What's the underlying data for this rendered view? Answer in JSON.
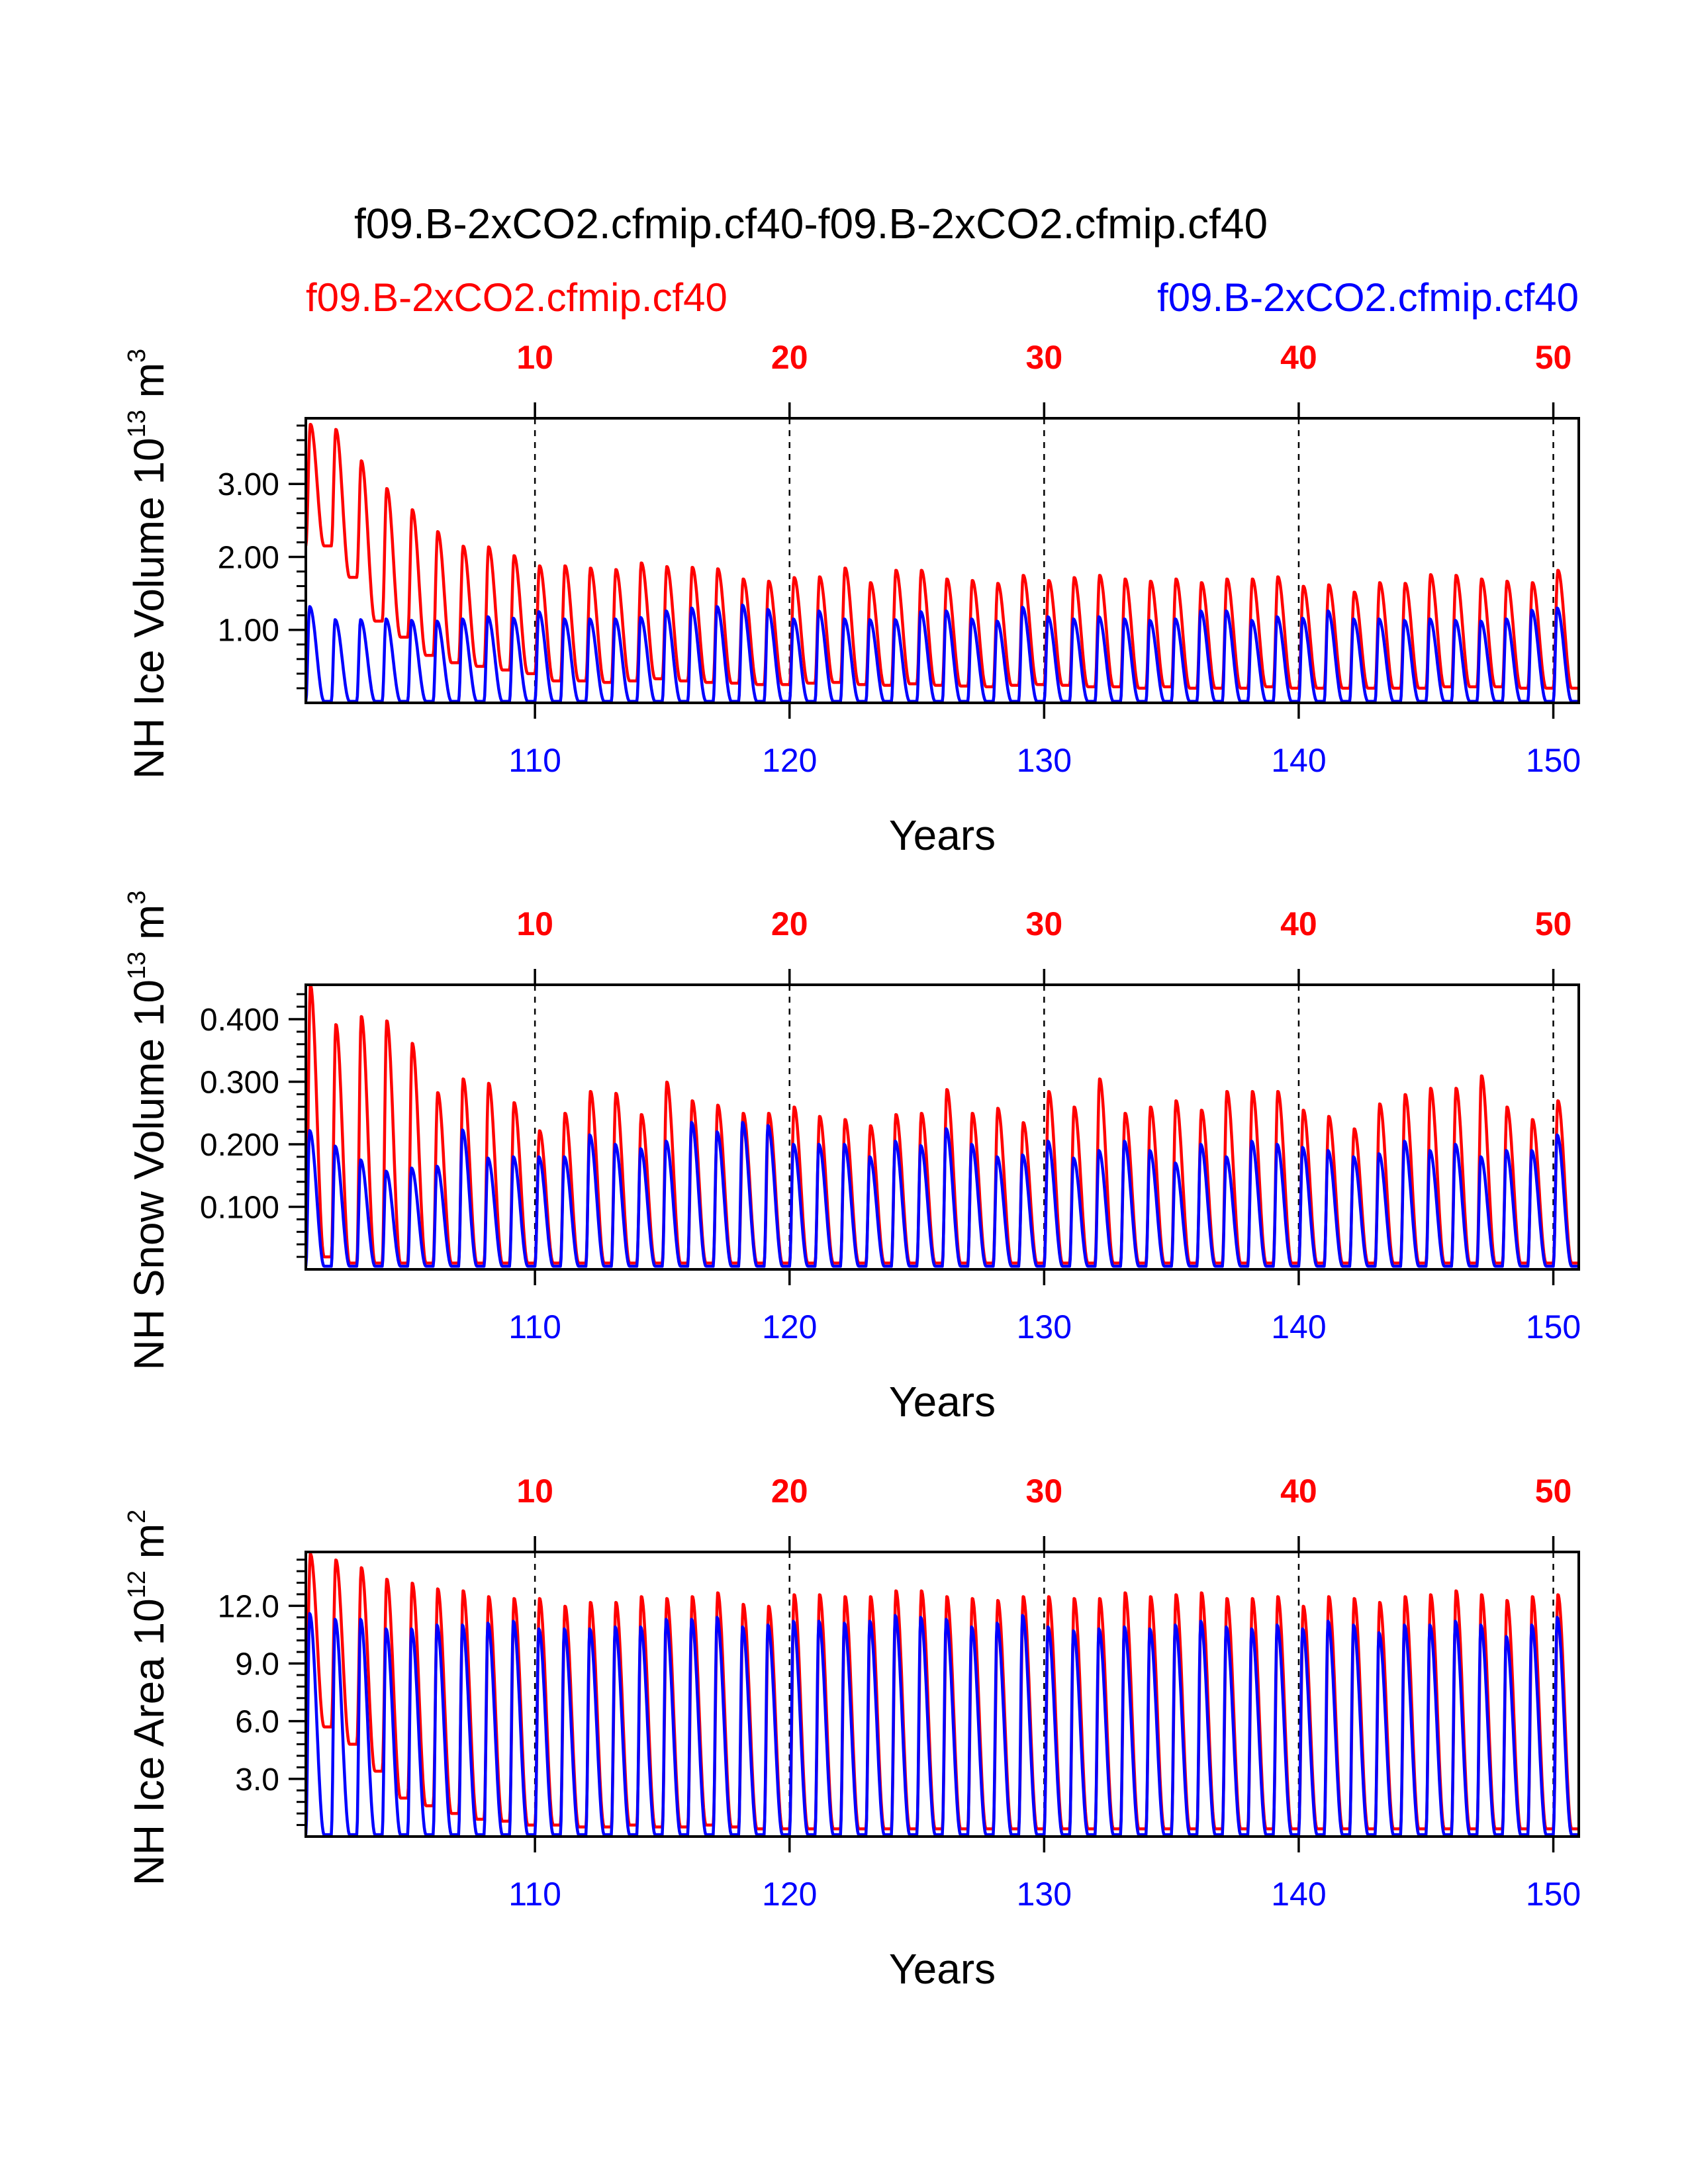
{
  "figure": {
    "title": "f09.B-2xCO2.cfmip.cf40-f09.B-2xCO2.cfmip.cf40",
    "left_label": "f09.B-2xCO2.cfmip.cf40",
    "right_label": "f09.B-2xCO2.cfmip.cf40"
  },
  "colors": {
    "red": "#ff0000",
    "blue": "#0000ff",
    "axis": "#000000"
  },
  "chart_data": [
    {
      "type": "line",
      "ylabel": "NH Ice Volume 10",
      "ylabel_exp": "13",
      "ylabel_unit": "m",
      "ylabel_unit_exp": "3",
      "xlabel": "Years",
      "xlim": [
        101,
        151
      ],
      "ylim": [
        0,
        3.9
      ],
      "yticks": [
        1.0,
        2.0,
        3.0
      ],
      "ytick_labels": [
        "1.00",
        "2.00",
        "3.00"
      ],
      "bottom_ticks": [
        110,
        120,
        130,
        140,
        150
      ],
      "bottom_tick_labels": [
        "110",
        "120",
        "130",
        "140",
        "150"
      ],
      "top_ticks": [
        110,
        120,
        130,
        140,
        150
      ],
      "top_tick_labels": [
        "10",
        "20",
        "30",
        "40",
        "50"
      ],
      "series": [
        {
          "color": "red",
          "max": [
            3.82,
            3.75,
            3.32,
            2.94,
            2.65,
            2.35,
            2.15,
            2.14,
            2.02,
            1.88,
            1.88,
            1.85,
            1.83,
            1.92,
            1.87,
            1.86,
            1.84,
            1.7,
            1.67,
            1.72,
            1.73,
            1.85,
            1.65,
            1.82,
            1.82,
            1.7,
            1.68,
            1.64,
            1.75,
            1.68,
            1.72,
            1.75,
            1.7,
            1.67,
            1.7,
            1.65,
            1.7,
            1.7,
            1.73,
            1.6,
            1.62,
            1.52,
            1.65,
            1.64,
            1.76,
            1.75,
            1.7,
            1.67,
            1.65,
            1.82
          ],
          "min": [
            2.15,
            1.72,
            1.12,
            0.9,
            0.65,
            0.55,
            0.5,
            0.45,
            0.4,
            0.3,
            0.3,
            0.28,
            0.3,
            0.33,
            0.3,
            0.28,
            0.27,
            0.25,
            0.25,
            0.27,
            0.28,
            0.25,
            0.24,
            0.26,
            0.24,
            0.23,
            0.22,
            0.24,
            0.25,
            0.24,
            0.22,
            0.22,
            0.2,
            0.22,
            0.2,
            0.2,
            0.2,
            0.22,
            0.2,
            0.2,
            0.2,
            0.2,
            0.2,
            0.2,
            0.22,
            0.22,
            0.22,
            0.2,
            0.2,
            0.2
          ]
        },
        {
          "color": "blue",
          "max": [
            1.32,
            1.14,
            1.14,
            1.15,
            1.13,
            1.12,
            1.15,
            1.18,
            1.16,
            1.25,
            1.15,
            1.15,
            1.15,
            1.17,
            1.26,
            1.3,
            1.32,
            1.34,
            1.28,
            1.15,
            1.26,
            1.15,
            1.14,
            1.14,
            1.25,
            1.26,
            1.15,
            1.12,
            1.31,
            1.18,
            1.15,
            1.18,
            1.15,
            1.13,
            1.15,
            1.26,
            1.26,
            1.13,
            1.18,
            1.16,
            1.26,
            1.15,
            1.15,
            1.13,
            1.15,
            1.13,
            1.12,
            1.15,
            1.27,
            1.3
          ],
          "min": [
            0.02,
            0.02,
            0.02,
            0.02,
            0.02,
            0.02,
            0.02,
            0.02,
            0.02,
            0.02,
            0.02,
            0.02,
            0.02,
            0.02,
            0.02,
            0.02,
            0.02,
            0.02,
            0.02,
            0.02,
            0.02,
            0.02,
            0.02,
            0.02,
            0.02,
            0.02,
            0.02,
            0.02,
            0.02,
            0.02,
            0.02,
            0.02,
            0.02,
            0.02,
            0.02,
            0.02,
            0.02,
            0.02,
            0.02,
            0.02,
            0.02,
            0.02,
            0.02,
            0.02,
            0.02,
            0.02,
            0.02,
            0.02,
            0.02,
            0.02
          ]
        }
      ]
    },
    {
      "type": "line",
      "ylabel": "NH Snow Volume 10",
      "ylabel_exp": "13",
      "ylabel_unit": "m",
      "ylabel_unit_exp": "3",
      "xlabel": "Years",
      "xlim": [
        101,
        151
      ],
      "ylim": [
        0,
        0.455
      ],
      "yticks": [
        0.1,
        0.2,
        0.3,
        0.4
      ],
      "ytick_labels": [
        "0.100",
        "0.200",
        "0.300",
        "0.400"
      ],
      "bottom_ticks": [
        110,
        120,
        130,
        140,
        150
      ],
      "bottom_tick_labels": [
        "110",
        "120",
        "130",
        "140",
        "150"
      ],
      "top_ticks": [
        110,
        120,
        130,
        140,
        150
      ],
      "top_tick_labels": [
        "10",
        "20",
        "30",
        "40",
        "50"
      ],
      "series": [
        {
          "color": "red",
          "max": [
            0.455,
            0.392,
            0.405,
            0.398,
            0.362,
            0.283,
            0.305,
            0.298,
            0.267,
            0.222,
            0.25,
            0.285,
            0.282,
            0.248,
            0.3,
            0.27,
            0.263,
            0.25,
            0.25,
            0.26,
            0.245,
            0.24,
            0.23,
            0.248,
            0.25,
            0.288,
            0.25,
            0.258,
            0.235,
            0.285,
            0.26,
            0.305,
            0.25,
            0.26,
            0.27,
            0.255,
            0.285,
            0.285,
            0.285,
            0.255,
            0.245,
            0.225,
            0.265,
            0.28,
            0.29,
            0.29,
            0.31,
            0.26,
            0.24,
            0.27
          ],
          "min": [
            0.02,
            0.01,
            0.01,
            0.01,
            0.01,
            0.01,
            0.01,
            0.01,
            0.01,
            0.01,
            0.01,
            0.01,
            0.01,
            0.01,
            0.01,
            0.01,
            0.01,
            0.01,
            0.01,
            0.01,
            0.01,
            0.01,
            0.01,
            0.01,
            0.01,
            0.01,
            0.01,
            0.01,
            0.01,
            0.01,
            0.01,
            0.01,
            0.01,
            0.01,
            0.01,
            0.01,
            0.01,
            0.01,
            0.01,
            0.01,
            0.01,
            0.01,
            0.01,
            0.01,
            0.01,
            0.01,
            0.01,
            0.01,
            0.01,
            0.01
          ]
        },
        {
          "color": "blue",
          "max": [
            0.222,
            0.197,
            0.175,
            0.157,
            0.162,
            0.165,
            0.223,
            0.178,
            0.18,
            0.18,
            0.18,
            0.215,
            0.2,
            0.193,
            0.205,
            0.235,
            0.22,
            0.235,
            0.23,
            0.2,
            0.2,
            0.2,
            0.18,
            0.205,
            0.198,
            0.225,
            0.2,
            0.18,
            0.183,
            0.205,
            0.178,
            0.19,
            0.205,
            0.19,
            0.17,
            0.2,
            0.18,
            0.205,
            0.2,
            0.195,
            0.19,
            0.18,
            0.185,
            0.205,
            0.19,
            0.2,
            0.18,
            0.19,
            0.19,
            0.215
          ],
          "min": [
            0.005,
            0.005,
            0.005,
            0.005,
            0.005,
            0.005,
            0.005,
            0.005,
            0.005,
            0.005,
            0.005,
            0.005,
            0.005,
            0.005,
            0.005,
            0.005,
            0.005,
            0.005,
            0.005,
            0.005,
            0.005,
            0.005,
            0.005,
            0.005,
            0.005,
            0.005,
            0.005,
            0.005,
            0.005,
            0.005,
            0.005,
            0.005,
            0.005,
            0.005,
            0.005,
            0.005,
            0.005,
            0.005,
            0.005,
            0.005,
            0.005,
            0.005,
            0.005,
            0.005,
            0.005,
            0.005,
            0.005,
            0.005,
            0.005,
            0.005
          ]
        }
      ]
    },
    {
      "type": "line",
      "ylabel": "NH Ice Area 10",
      "ylabel_exp": "12",
      "ylabel_unit": "m",
      "ylabel_unit_exp": "2",
      "xlabel": "Years",
      "xlim": [
        101,
        151
      ],
      "ylim": [
        0,
        14.8
      ],
      "yticks": [
        3.0,
        6.0,
        9.0,
        12.0
      ],
      "ytick_labels": [
        "3.0",
        "6.0",
        "9.0",
        "12.0"
      ],
      "bottom_ticks": [
        110,
        120,
        130,
        140,
        150
      ],
      "bottom_tick_labels": [
        "110",
        "120",
        "130",
        "140",
        "150"
      ],
      "top_ticks": [
        110,
        120,
        130,
        140,
        150
      ],
      "top_tick_labels": [
        "10",
        "20",
        "30",
        "40",
        "50"
      ],
      "series": [
        {
          "color": "red",
          "max": [
            14.7,
            14.4,
            14.0,
            13.4,
            13.2,
            12.9,
            12.8,
            12.5,
            12.4,
            12.4,
            12.0,
            12.2,
            12.2,
            12.5,
            12.4,
            12.5,
            12.7,
            12.1,
            12.0,
            12.6,
            12.6,
            12.5,
            12.5,
            12.8,
            12.8,
            12.5,
            12.4,
            12.3,
            12.5,
            12.5,
            12.4,
            12.4,
            12.7,
            12.5,
            12.6,
            12.7,
            12.4,
            12.4,
            12.5,
            12.0,
            12.5,
            12.4,
            12.2,
            12.5,
            12.6,
            12.8,
            12.6,
            12.3,
            12.5,
            12.6
          ],
          "min": [
            5.7,
            4.8,
            3.4,
            2.0,
            1.6,
            1.2,
            0.9,
            0.8,
            0.6,
            0.6,
            0.5,
            0.5,
            0.6,
            0.5,
            0.5,
            0.6,
            0.5,
            0.4,
            0.4,
            0.4,
            0.4,
            0.4,
            0.4,
            0.4,
            0.4,
            0.4,
            0.4,
            0.4,
            0.4,
            0.4,
            0.4,
            0.4,
            0.4,
            0.4,
            0.4,
            0.4,
            0.4,
            0.4,
            0.4,
            0.4,
            0.4,
            0.4,
            0.4,
            0.4,
            0.4,
            0.4,
            0.4,
            0.4,
            0.4,
            0.4
          ]
        },
        {
          "color": "blue",
          "max": [
            11.6,
            11.3,
            11.3,
            10.8,
            10.8,
            11.0,
            11.0,
            11.1,
            11.2,
            10.8,
            10.8,
            10.8,
            10.9,
            10.9,
            11.3,
            11.3,
            11.4,
            10.9,
            11.0,
            11.2,
            11.2,
            11.1,
            11.2,
            11.5,
            11.4,
            11.3,
            10.9,
            11.1,
            11.5,
            10.9,
            10.7,
            10.8,
            10.9,
            10.8,
            11.0,
            11.2,
            10.9,
            10.8,
            11.0,
            10.8,
            11.2,
            11.0,
            10.6,
            11.0,
            11.0,
            11.2,
            11.0,
            10.4,
            11.0,
            11.4
          ],
          "min": [
            0.1,
            0.1,
            0.1,
            0.1,
            0.1,
            0.1,
            0.1,
            0.1,
            0.1,
            0.1,
            0.1,
            0.1,
            0.1,
            0.1,
            0.1,
            0.1,
            0.1,
            0.1,
            0.1,
            0.1,
            0.1,
            0.1,
            0.1,
            0.1,
            0.1,
            0.1,
            0.1,
            0.1,
            0.1,
            0.1,
            0.1,
            0.1,
            0.1,
            0.1,
            0.1,
            0.1,
            0.1,
            0.1,
            0.1,
            0.1,
            0.1,
            0.1,
            0.1,
            0.1,
            0.1,
            0.1,
            0.1,
            0.1,
            0.1,
            0.1
          ]
        }
      ]
    }
  ]
}
